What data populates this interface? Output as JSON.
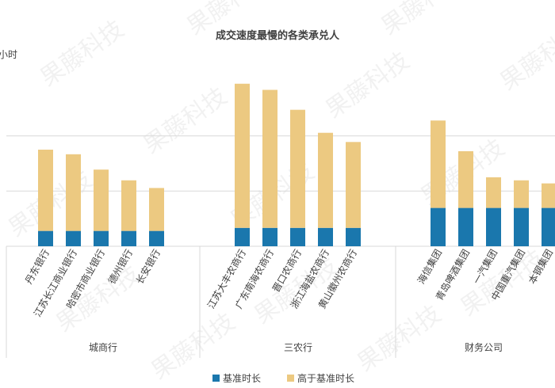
{
  "chart_data": {
    "type": "bar",
    "stacked": true,
    "title": "成交速度最慢的各类承兑人",
    "ylabel": "小时",
    "grid": true,
    "legend_position": "bottom",
    "watermark": "果藤科技",
    "groups": [
      {
        "name": "城商行",
        "categories": [
          "丹东银行",
          "江苏长江商业银行",
          "哈密市商业银行",
          "德州银行",
          "长安银行"
        ],
        "base": [
          10,
          10,
          10,
          10,
          10
        ],
        "above": [
          53,
          50,
          40,
          33,
          28
        ]
      },
      {
        "name": "三农行",
        "categories": [
          "江苏大丰农商行",
          "广东南海农商行",
          "晋口农商行",
          "浙江海盐农商行",
          "黄山徽州农商行"
        ],
        "base": [
          12,
          12,
          12,
          12,
          12
        ],
        "above": [
          94,
          90,
          77,
          62,
          56
        ]
      },
      {
        "name": "财务公司",
        "categories": [
          "海信集团",
          "青岛啤酒集团",
          "一汽集团",
          "中国重汽集团",
          "本钢集团"
        ],
        "base": [
          25,
          25,
          25,
          25,
          25
        ],
        "above": [
          57,
          37,
          20,
          18,
          16
        ]
      }
    ],
    "series": [
      {
        "name": "基准时长",
        "color": "#1a77ad"
      },
      {
        "name": "高于基准时长",
        "color": "#ecc981"
      }
    ],
    "ylim": [
      0,
      110
    ],
    "gridlines": [
      0,
      36,
      72
    ]
  }
}
